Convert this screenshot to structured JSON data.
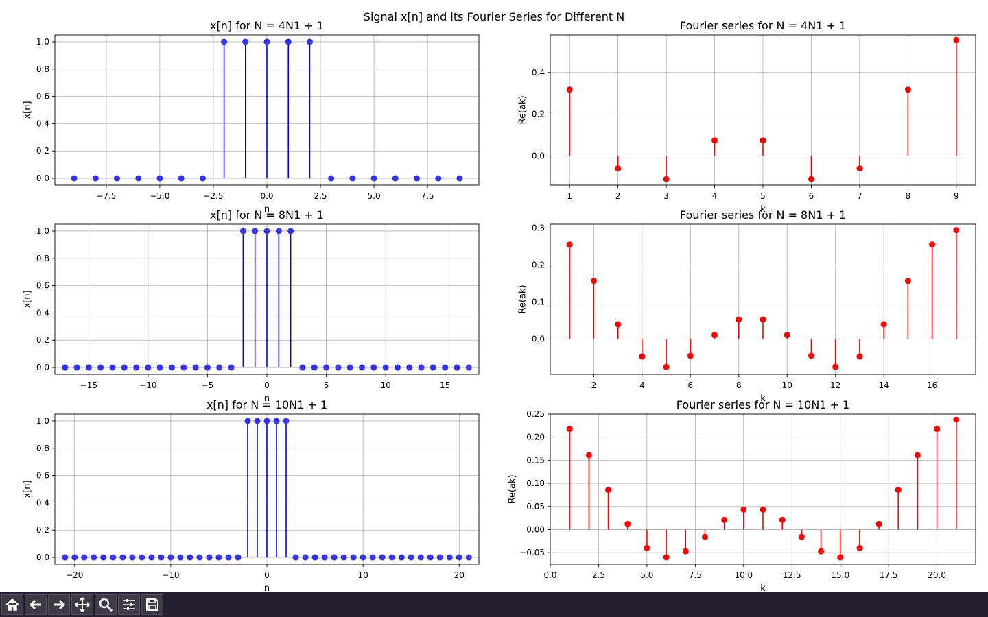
{
  "figure_title": "Signal x[n] and its Fourier Series for Different N",
  "colors": {
    "signal": "#0000ff",
    "signal_marker": "#3333ee",
    "fourier": "#ff0000",
    "grid": "#b0b0b0"
  },
  "toolbar": [
    {
      "name": "home-icon",
      "title": "Home"
    },
    {
      "name": "back-icon",
      "title": "Back"
    },
    {
      "name": "forward-icon",
      "title": "Forward"
    },
    {
      "name": "pan-icon",
      "title": "Pan"
    },
    {
      "name": "zoom-icon",
      "title": "Zoom"
    },
    {
      "name": "configure-subplots-icon",
      "title": "Configure subplots"
    },
    {
      "name": "save-icon",
      "title": "Save"
    }
  ],
  "chart_data": [
    {
      "type": "stem",
      "title": "x[n] for N = 4N1 + 1",
      "xlabel": "n",
      "ylabel": "x[n]",
      "xlim": [
        -9.9,
        9.9
      ],
      "ylim": [
        -0.05,
        1.05
      ],
      "xticks": [
        -7.5,
        -5.0,
        -2.5,
        0.0,
        2.5,
        5.0,
        7.5
      ],
      "xtick_labels": [
        "−7.5",
        "−5.0",
        "−2.5",
        "0.0",
        "2.5",
        "5.0",
        "7.5"
      ],
      "yticks": [
        0.0,
        0.2,
        0.4,
        0.6,
        0.8,
        1.0
      ],
      "ytick_labels": [
        "0.0",
        "0.2",
        "0.4",
        "0.6",
        "0.8",
        "1.0"
      ],
      "grid": true,
      "x": [
        -9,
        -8,
        -7,
        -6,
        -5,
        -4,
        -3,
        -2,
        -1,
        0,
        1,
        2,
        3,
        4,
        5,
        6,
        7,
        8,
        9
      ],
      "y": [
        0,
        0,
        0,
        0,
        0,
        0,
        0,
        1,
        1,
        1,
        1,
        1,
        0,
        0,
        0,
        0,
        0,
        0,
        0
      ]
    },
    {
      "type": "stem",
      "title": "Fourier series for N = 4N1 + 1",
      "xlabel": "k",
      "ylabel": "Re(ak)",
      "xlim": [
        0.6,
        9.4
      ],
      "ylim": [
        -0.14,
        0.58
      ],
      "xticks": [
        1,
        2,
        3,
        4,
        5,
        6,
        7,
        8,
        9
      ],
      "xtick_labels": [
        "1",
        "2",
        "3",
        "4",
        "5",
        "6",
        "7",
        "8",
        "9"
      ],
      "yticks": [
        0.0,
        0.2,
        0.4
      ],
      "ytick_labels": [
        "0.0",
        "0.2",
        "0.4"
      ],
      "grid": true,
      "x": [
        1,
        2,
        3,
        4,
        5,
        6,
        7,
        8,
        9
      ],
      "y": [
        0.318,
        -0.06,
        -0.111,
        0.074,
        0.074,
        -0.111,
        -0.06,
        0.318,
        0.556
      ]
    },
    {
      "type": "stem",
      "title": "x[n] for N = 8N1 + 1",
      "xlabel": "n",
      "ylabel": "x[n]",
      "xlim": [
        -17.85,
        17.85
      ],
      "ylim": [
        -0.05,
        1.05
      ],
      "xticks": [
        -15,
        -10,
        -5,
        0,
        5,
        10,
        15
      ],
      "xtick_labels": [
        "−15",
        "−10",
        "−5",
        "0",
        "5",
        "10",
        "15"
      ],
      "yticks": [
        0.0,
        0.2,
        0.4,
        0.6,
        0.8,
        1.0
      ],
      "ytick_labels": [
        "0.0",
        "0.2",
        "0.4",
        "0.6",
        "0.8",
        "1.0"
      ],
      "grid": true,
      "x": [
        -17,
        -16,
        -15,
        -14,
        -13,
        -12,
        -11,
        -10,
        -9,
        -8,
        -7,
        -6,
        -5,
        -4,
        -3,
        -2,
        -1,
        0,
        1,
        2,
        3,
        4,
        5,
        6,
        7,
        8,
        9,
        10,
        11,
        12,
        13,
        14,
        15,
        16,
        17
      ],
      "y": [
        0,
        0,
        0,
        0,
        0,
        0,
        0,
        0,
        0,
        0,
        0,
        0,
        0,
        0,
        0,
        1,
        1,
        1,
        1,
        1,
        0,
        0,
        0,
        0,
        0,
        0,
        0,
        0,
        0,
        0,
        0,
        0,
        0,
        0,
        0
      ]
    },
    {
      "type": "stem",
      "title": "Fourier series for N = 8N1 + 1",
      "xlabel": "k",
      "ylabel": "Re(ak)",
      "xlim": [
        0.2,
        17.8
      ],
      "ylim": [
        -0.095,
        0.31
      ],
      "xticks": [
        2,
        4,
        6,
        8,
        10,
        12,
        14,
        16
      ],
      "xtick_labels": [
        "2",
        "4",
        "6",
        "8",
        "10",
        "12",
        "14",
        "16"
      ],
      "yticks": [
        0.0,
        0.1,
        0.2,
        0.3
      ],
      "ytick_labels": [
        "0.0",
        "0.1",
        "0.2",
        "0.3"
      ],
      "grid": true,
      "x": [
        1,
        2,
        3,
        4,
        5,
        6,
        7,
        8,
        9,
        10,
        11,
        12,
        13,
        14,
        15,
        16,
        17
      ],
      "y": [
        0.255,
        0.157,
        0.04,
        -0.047,
        -0.075,
        -0.045,
        0.011,
        0.053,
        0.053,
        0.011,
        -0.045,
        -0.075,
        -0.047,
        0.04,
        0.157,
        0.255,
        0.294
      ]
    },
    {
      "type": "stem",
      "title": "x[n] for N = 10N1 + 1",
      "xlabel": "n",
      "ylabel": "x[n]",
      "xlim": [
        -22.05,
        22.05
      ],
      "ylim": [
        -0.05,
        1.05
      ],
      "xticks": [
        -20,
        -10,
        0,
        10,
        20
      ],
      "xtick_labels": [
        "−20",
        "−10",
        "0",
        "10",
        "20"
      ],
      "yticks": [
        0.0,
        0.2,
        0.4,
        0.6,
        0.8,
        1.0
      ],
      "ytick_labels": [
        "0.0",
        "0.2",
        "0.4",
        "0.6",
        "0.8",
        "1.0"
      ],
      "grid": true,
      "x": [
        -21,
        -20,
        -19,
        -18,
        -17,
        -16,
        -15,
        -14,
        -13,
        -12,
        -11,
        -10,
        -9,
        -8,
        -7,
        -6,
        -5,
        -4,
        -3,
        -2,
        -1,
        0,
        1,
        2,
        3,
        4,
        5,
        6,
        7,
        8,
        9,
        10,
        11,
        12,
        13,
        14,
        15,
        16,
        17,
        18,
        19,
        20,
        21
      ],
      "y": [
        0,
        0,
        0,
        0,
        0,
        0,
        0,
        0,
        0,
        0,
        0,
        0,
        0,
        0,
        0,
        0,
        0,
        0,
        0,
        1,
        1,
        1,
        1,
        1,
        0,
        0,
        0,
        0,
        0,
        0,
        0,
        0,
        0,
        0,
        0,
        0,
        0,
        0,
        0,
        0,
        0,
        0,
        0
      ]
    },
    {
      "type": "stem",
      "title": "Fourier series for N = 10N1 + 1",
      "xlabel": "k",
      "ylabel": "Re(ak)",
      "xlim": [
        0.0,
        22.0
      ],
      "ylim": [
        -0.075,
        0.25
      ],
      "xticks": [
        0.0,
        2.5,
        5.0,
        7.5,
        10.0,
        12.5,
        15.0,
        17.5,
        20.0
      ],
      "xtick_labels": [
        "0.0",
        "2.5",
        "5.0",
        "7.5",
        "10.0",
        "12.5",
        "15.0",
        "17.5",
        "20.0"
      ],
      "yticks": [
        -0.05,
        0.0,
        0.05,
        0.1,
        0.15,
        0.2,
        0.25
      ],
      "ytick_labels": [
        "−0.05",
        "0.00",
        "0.05",
        "0.10",
        "0.15",
        "0.20",
        "0.25"
      ],
      "grid": true,
      "x": [
        1,
        2,
        3,
        4,
        5,
        6,
        7,
        8,
        9,
        10,
        11,
        12,
        13,
        14,
        15,
        16,
        17,
        18,
        19,
        20,
        21
      ],
      "y": [
        0.218,
        0.161,
        0.086,
        0.012,
        -0.04,
        -0.06,
        -0.047,
        -0.016,
        0.021,
        0.043,
        0.043,
        0.021,
        -0.016,
        -0.047,
        -0.06,
        -0.04,
        0.012,
        0.086,
        0.161,
        0.218,
        0.238
      ]
    }
  ]
}
